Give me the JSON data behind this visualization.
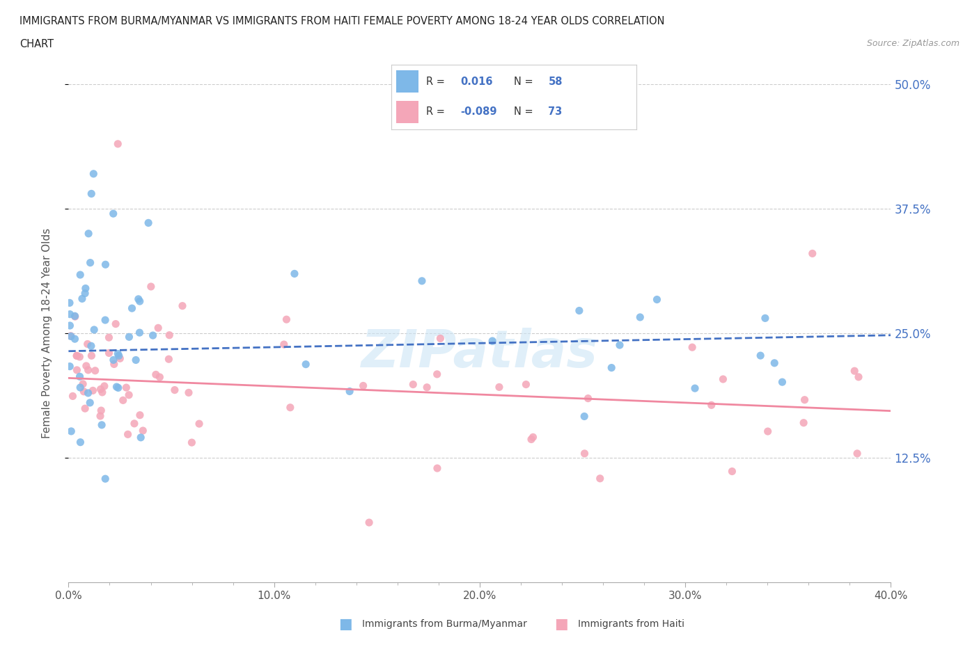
{
  "title_line1": "IMMIGRANTS FROM BURMA/MYANMAR VS IMMIGRANTS FROM HAITI FEMALE POVERTY AMONG 18-24 YEAR OLDS CORRELATION",
  "title_line2": "CHART",
  "source_text": "Source: ZipAtlas.com",
  "ylabel": "Female Poverty Among 18-24 Year Olds",
  "xlim": [
    0.0,
    0.4
  ],
  "ylim": [
    0.0,
    0.5
  ],
  "xtick_labels": [
    "0.0%",
    "",
    "",
    "",
    "",
    "10.0%",
    "",
    "",
    "",
    "",
    "20.0%",
    "",
    "",
    "",
    "",
    "30.0%",
    "",
    "",
    "",
    "",
    "40.0%"
  ],
  "xtick_values": [
    0.0,
    0.02,
    0.04,
    0.06,
    0.08,
    0.1,
    0.12,
    0.14,
    0.16,
    0.18,
    0.2,
    0.22,
    0.24,
    0.26,
    0.28,
    0.3,
    0.32,
    0.34,
    0.36,
    0.38,
    0.4
  ],
  "xtick_major_labels": [
    "0.0%",
    "10.0%",
    "20.0%",
    "30.0%",
    "40.0%"
  ],
  "xtick_major_values": [
    0.0,
    0.1,
    0.2,
    0.3,
    0.4
  ],
  "ytick_labels": [
    "12.5%",
    "25.0%",
    "37.5%",
    "50.0%"
  ],
  "ytick_values": [
    0.125,
    0.25,
    0.375,
    0.5
  ],
  "grid_color": "#cccccc",
  "background_color": "#ffffff",
  "burma_color": "#7eb8e8",
  "haiti_color": "#f4a6b8",
  "burma_line_color": "#4472c4",
  "haiti_line_color": "#f088a0",
  "watermark": "ZIPatlas",
  "legend_R_burma": "0.016",
  "legend_N_burma": "58",
  "legend_R_haiti": "-0.089",
  "legend_N_haiti": "73",
  "legend_label_burma": "Immigrants from Burma/Myanmar",
  "legend_label_haiti": "Immigrants from Haiti",
  "burma_trend_x0": 0.0,
  "burma_trend_x1": 0.4,
  "burma_trend_y0": 0.232,
  "burma_trend_y1": 0.248,
  "haiti_trend_x0": 0.0,
  "haiti_trend_x1": 0.4,
  "haiti_trend_y0": 0.205,
  "haiti_trend_y1": 0.172
}
